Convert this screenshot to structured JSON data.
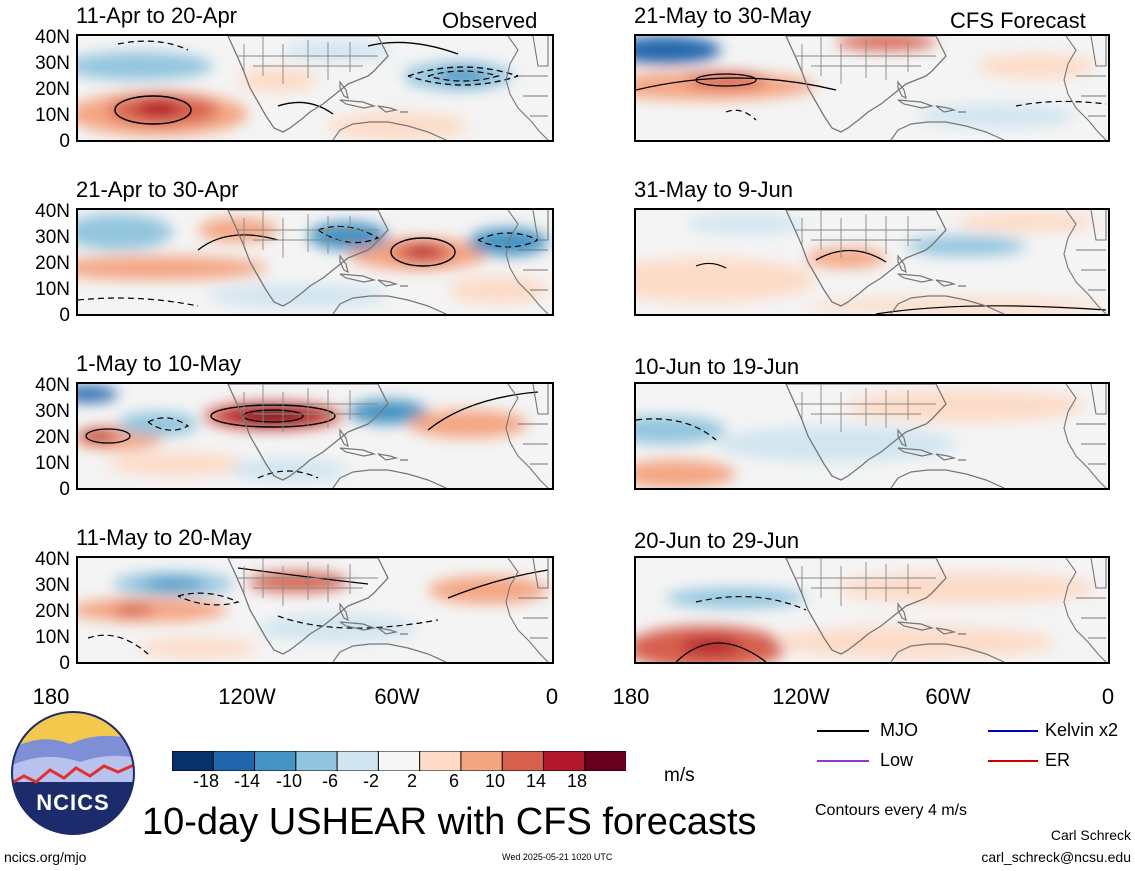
{
  "header": {
    "observed_label": "Observed",
    "forecast_label": "CFS Forecast"
  },
  "lat_ticks": [
    "40N",
    "30N",
    "20N",
    "10N",
    "0"
  ],
  "lon_ticks": [
    "180",
    "120W",
    "60W",
    "0"
  ],
  "panels_observed": [
    {
      "title": "11-Apr to 20-Apr"
    },
    {
      "title": "21-Apr to 30-Apr"
    },
    {
      "title": "1-May to 10-May"
    },
    {
      "title": "11-May to 20-May"
    }
  ],
  "panels_forecast": [
    {
      "title": "21-May to 30-May"
    },
    {
      "title": "31-May to 9-Jun"
    },
    {
      "title": "10-Jun to 19-Jun"
    },
    {
      "title": "20-Jun to 29-Jun"
    }
  ],
  "colorbar": {
    "labels": [
      "-18",
      "-14",
      "-10",
      "-6",
      "-2",
      "2",
      "6",
      "10",
      "14",
      "18"
    ],
    "colors": [
      "#08306b",
      "#2166ac",
      "#4393c3",
      "#92c5de",
      "#d1e5f0",
      "#f7f7f7",
      "#fddbc7",
      "#f4a582",
      "#d6604d",
      "#b2182b",
      "#67001f"
    ],
    "units": "m/s"
  },
  "legend": {
    "items": [
      {
        "label": "MJO",
        "color": "#000000"
      },
      {
        "label": "Kelvin x2",
        "color": "#0000cc"
      },
      {
        "label": "Low",
        "color": "#9933cc"
      },
      {
        "label": "ER",
        "color": "#cc0000"
      }
    ],
    "contour_note": "Contours every 4 m/s"
  },
  "logo": {
    "text": "NCICS"
  },
  "title": "10-day USHEAR with CFS forecasts",
  "footer": {
    "left": "ncics.org/mjo",
    "center": "Wed 2025-05-21 1020 UTC",
    "author": "Carl Schreck",
    "email": "carl_schreck@ncsu.edu"
  }
}
